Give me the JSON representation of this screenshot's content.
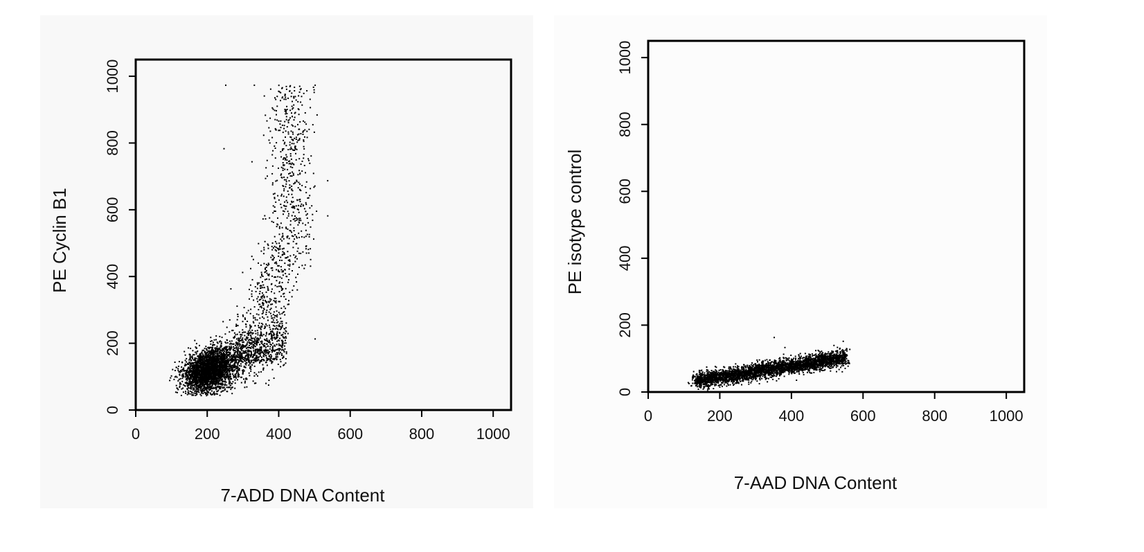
{
  "chart_data": [
    {
      "type": "scatter",
      "title": "",
      "xlabel": "7-ADD DNA Content",
      "ylabel": "PE Cyclin B1",
      "xlim": [
        0,
        1050
      ],
      "ylim": [
        0,
        1050
      ],
      "xticks": [
        0,
        200,
        400,
        600,
        800,
        1000
      ],
      "yticks": [
        0,
        200,
        400,
        600,
        800,
        1000
      ],
      "xtick_labels": [
        "0",
        "200",
        "400",
        "600",
        "800",
        "1000"
      ],
      "ytick_labels": [
        "0",
        "200",
        "400",
        "600",
        "800",
        "1000"
      ],
      "grid": false,
      "point_color": "#000000",
      "population": {
        "dense_core": {
          "x_mean": 200,
          "y_mean": 120,
          "x_sd": 35,
          "y_sd": 35,
          "count": 2600
        },
        "g2m_arm": {
          "x_from": 220,
          "x_to": 420,
          "y_from": 150,
          "y_to": 975,
          "count": 1100
        },
        "outliers": [
          {
            "x": 250,
            "y": 975
          },
          {
            "x": 500,
            "y": 975
          },
          {
            "x": 245,
            "y": 785
          },
          {
            "x": 500,
            "y": 215
          },
          {
            "x": 460,
            "y": 830
          },
          {
            "x": 330,
            "y": 975
          },
          {
            "x": 420,
            "y": 640
          }
        ]
      }
    },
    {
      "type": "scatter",
      "title": "",
      "xlabel": "7-AAD DNA Content",
      "ylabel": "PE isotype control",
      "xlim": [
        0,
        1050
      ],
      "ylim": [
        0,
        1050
      ],
      "xticks": [
        0,
        200,
        400,
        600,
        800,
        1000
      ],
      "yticks": [
        0,
        200,
        400,
        600,
        800,
        1000
      ],
      "xtick_labels": [
        "0",
        "200",
        "400",
        "600",
        "800",
        "1000"
      ],
      "ytick_labels": [
        "0",
        "200",
        "400",
        "600",
        "800",
        "1000"
      ],
      "grid": false,
      "point_color": "#000000",
      "population": {
        "band": {
          "x_from": 130,
          "x_to": 550,
          "y_at_x_from": 35,
          "y_at_x_to": 105,
          "y_sd": 12,
          "count": 3200
        },
        "outliers": [
          {
            "x": 350,
            "y": 165
          },
          {
            "x": 380,
            "y": 135
          },
          {
            "x": 110,
            "y": 30
          }
        ]
      }
    }
  ]
}
